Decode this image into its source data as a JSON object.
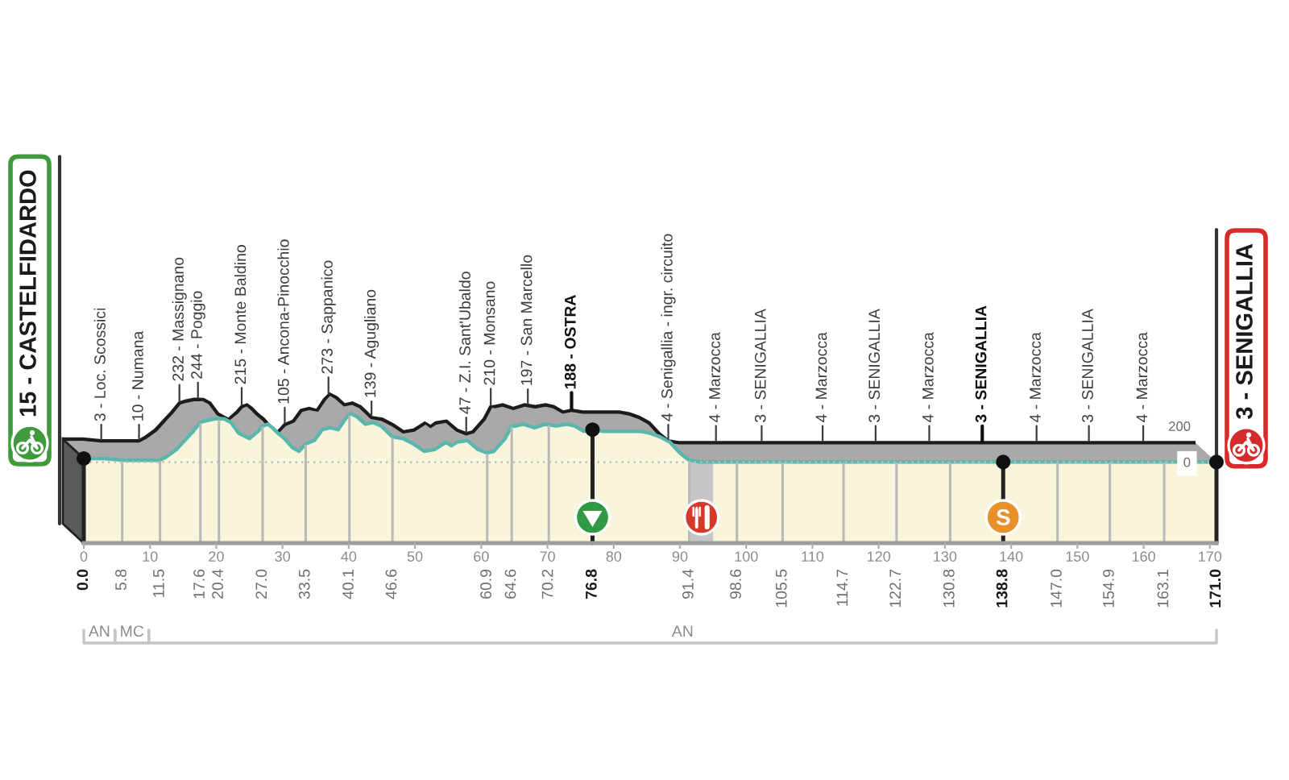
{
  "chart_data": {
    "type": "area",
    "color": "#f8f5da",
    "x": [
      0,
      3,
      5.8,
      9,
      11.5,
      12.5,
      14,
      15.5,
      16.5,
      17.6,
      18.5,
      19.8,
      20.4,
      21.2,
      22.2,
      23.4,
      25,
      26.3,
      27,
      27.8,
      28.5,
      29.3,
      30.3,
      31.5,
      32.5,
      33.5,
      34.8,
      36,
      37.2,
      38.4,
      39.5,
      40.3,
      41.3,
      42.5,
      43.7,
      44.9,
      46.6,
      48.2,
      49.8,
      51.4,
      53,
      54.7,
      55.5,
      56.3,
      57.9,
      59.5,
      60.9,
      61.9,
      63.6,
      64.6,
      65.2,
      66.4,
      68,
      69.7,
      71.3,
      72.9,
      74.1,
      75.5,
      76.8,
      78.5,
      80,
      82,
      84,
      85.5,
      87,
      88.5,
      90,
      91.4,
      93,
      98.6,
      105.5,
      114.7,
      122.7,
      130.8,
      138.8,
      147,
      154.9,
      163.1,
      168,
      171
    ],
    "values": [
      20,
      20,
      10,
      10,
      10,
      30,
      70,
      130,
      170,
      220,
      230,
      240,
      240,
      240,
      220,
      160,
      130,
      170,
      200,
      210,
      190,
      160,
      130,
      80,
      60,
      100,
      120,
      180,
      190,
      180,
      240,
      270,
      250,
      210,
      220,
      200,
      140,
      130,
      100,
      60,
      70,
      110,
      90,
      110,
      120,
      70,
      50,
      60,
      130,
      200,
      200,
      210,
      190,
      210,
      200,
      210,
      200,
      170,
      180,
      170,
      170,
      170,
      170,
      160,
      140,
      110,
      50,
      10,
      0,
      0,
      0,
      0,
      0,
      0,
      0,
      0,
      0,
      0,
      0,
      0
    ],
    "xlim": [
      0,
      171
    ],
    "xticks": [
      0,
      10,
      20,
      30,
      40,
      50,
      60,
      70,
      80,
      90,
      100,
      110,
      120,
      130,
      140,
      150,
      160,
      170
    ],
    "ylim": [
      -450,
      1290
    ],
    "yticks": [
      0,
      200
    ],
    "ref_lines": [
      {
        "axis": "y",
        "value": 0,
        "line_style": "dotted",
        "color": "#bdbdbd"
      },
      {
        "axis": "x",
        "value": 0,
        "label": "0.0",
        "color": "#222222"
      },
      {
        "axis": "x",
        "value": 5.8,
        "label": "5.8",
        "color": "#b9b9b9"
      },
      {
        "axis": "x",
        "value": 11.5,
        "label": "11.5",
        "color": "#b9b9b9"
      },
      {
        "axis": "x",
        "value": 17.6,
        "label": "17.6",
        "color": "#b9b9b9"
      },
      {
        "axis": "x",
        "value": 20.4,
        "label": "20.4",
        "color": "#b9b9b9"
      },
      {
        "axis": "x",
        "value": 27.0,
        "label": "27.0",
        "color": "#b9b9b9"
      },
      {
        "axis": "x",
        "value": 33.5,
        "label": "33.5",
        "color": "#b9b9b9"
      },
      {
        "axis": "x",
        "value": 40.1,
        "label": "40.1",
        "color": "#b9b9b9"
      },
      {
        "axis": "x",
        "value": 46.6,
        "label": "46.6",
        "color": "#b9b9b9"
      },
      {
        "axis": "x",
        "value": 60.9,
        "label": "60.9",
        "color": "#b9b9b9"
      },
      {
        "axis": "x",
        "value": 64.6,
        "label": "64.6",
        "color": "#b9b9b9"
      },
      {
        "axis": "x",
        "value": 70.2,
        "label": "70.2",
        "color": "#b9b9b9"
      },
      {
        "axis": "x",
        "value": 76.8,
        "label": "76.8",
        "color": "#222222"
      },
      {
        "axis": "x",
        "value": 91.4,
        "label": "91.4",
        "color": "#b9b9b9"
      },
      {
        "axis": "x",
        "value": 98.6,
        "label": "98.6",
        "color": "#b9b9b9"
      },
      {
        "axis": "x",
        "value": 105.5,
        "label": "105.5",
        "color": "#b9b9b9"
      },
      {
        "axis": "x",
        "value": 114.7,
        "label": "114.7",
        "color": "#b9b9b9"
      },
      {
        "axis": "x",
        "value": 122.7,
        "label": "122.7",
        "color": "#b9b9b9"
      },
      {
        "axis": "x",
        "value": 130.8,
        "label": "130.8",
        "color": "#b9b9b9"
      },
      {
        "axis": "x",
        "value": 138.8,
        "label": "138.8",
        "color": "#222222"
      },
      {
        "axis": "x",
        "value": 147.0,
        "label": "147.0",
        "color": "#b9b9b9"
      },
      {
        "axis": "x",
        "value": 154.9,
        "label": "154.9",
        "color": "#b9b9b9"
      },
      {
        "axis": "x",
        "value": 163.1,
        "label": "163.1",
        "color": "#b9b9b9"
      },
      {
        "axis": "x",
        "value": 171.0,
        "label": "171.0",
        "color": "#222222"
      }
    ],
    "bands": [
      {
        "axis": "y",
        "from": -450,
        "to": 0,
        "color": "#f8f5da"
      },
      {
        "axis": "x",
        "from": 91.5,
        "to": 95,
        "color": "#c6c6c6"
      }
    ],
    "annotations": [
      {
        "text": "15 - CASTELFIDARDO",
        "x": 0,
        "y": 15
      },
      {
        "text": "3 - Loc. Scossici",
        "x": 5.8,
        "y": 3
      },
      {
        "text": "10 - Numana",
        "x": 11.5,
        "y": 10
      },
      {
        "text": "232 - Massignano",
        "x": 17.6,
        "y": 232
      },
      {
        "text": "244 - Poggio",
        "x": 20.4,
        "y": 244
      },
      {
        "text": "215 - Monte Baldino",
        "x": 27.0,
        "y": 215
      },
      {
        "text": "105 - Ancona-Pinocchio",
        "x": 33.5,
        "y": 105
      },
      {
        "text": "273 - Sappanico",
        "x": 40.1,
        "y": 273
      },
      {
        "text": "139 - Agugliano",
        "x": 46.6,
        "y": 139
      },
      {
        "text": "47 - Z.I. Sant'Ubaldo",
        "x": 60.9,
        "y": 47
      },
      {
        "text": "210 - Monsano",
        "x": 64.6,
        "y": 210
      },
      {
        "text": "197 - San Marcello",
        "x": 70.2,
        "y": 197
      },
      {
        "text": "188 - OSTRA",
        "x": 76.8,
        "y": 188
      },
      {
        "text": "4 - Senigallia - ingr. circuito",
        "x": 91.4,
        "y": 4
      },
      {
        "text": "4 - Marzocca",
        "x": 98.6,
        "y": 4
      },
      {
        "text": "3 - SENIGALLIA",
        "x": 105.5,
        "y": 3
      },
      {
        "text": "4 - Marzocca",
        "x": 114.7,
        "y": 4
      },
      {
        "text": "3 - SENIGALLIA",
        "x": 122.7,
        "y": 3
      },
      {
        "text": "4 - Marzocca",
        "x": 130.8,
        "y": 4
      },
      {
        "text": "3 - SENIGALLIA",
        "x": 138.8,
        "y": 3
      },
      {
        "text": "4 - Marzocca",
        "x": 147.0,
        "y": 4
      },
      {
        "text": "3 - SENIGALLIA",
        "x": 154.9,
        "y": 3
      },
      {
        "text": "4 - Marzocca",
        "x": 163.1,
        "y": 4
      },
      {
        "text": "3 - SENIGALLIA",
        "x": 171.0,
        "y": 3
      },
      "AN",
      "MC",
      "AN"
    ]
  }
}
